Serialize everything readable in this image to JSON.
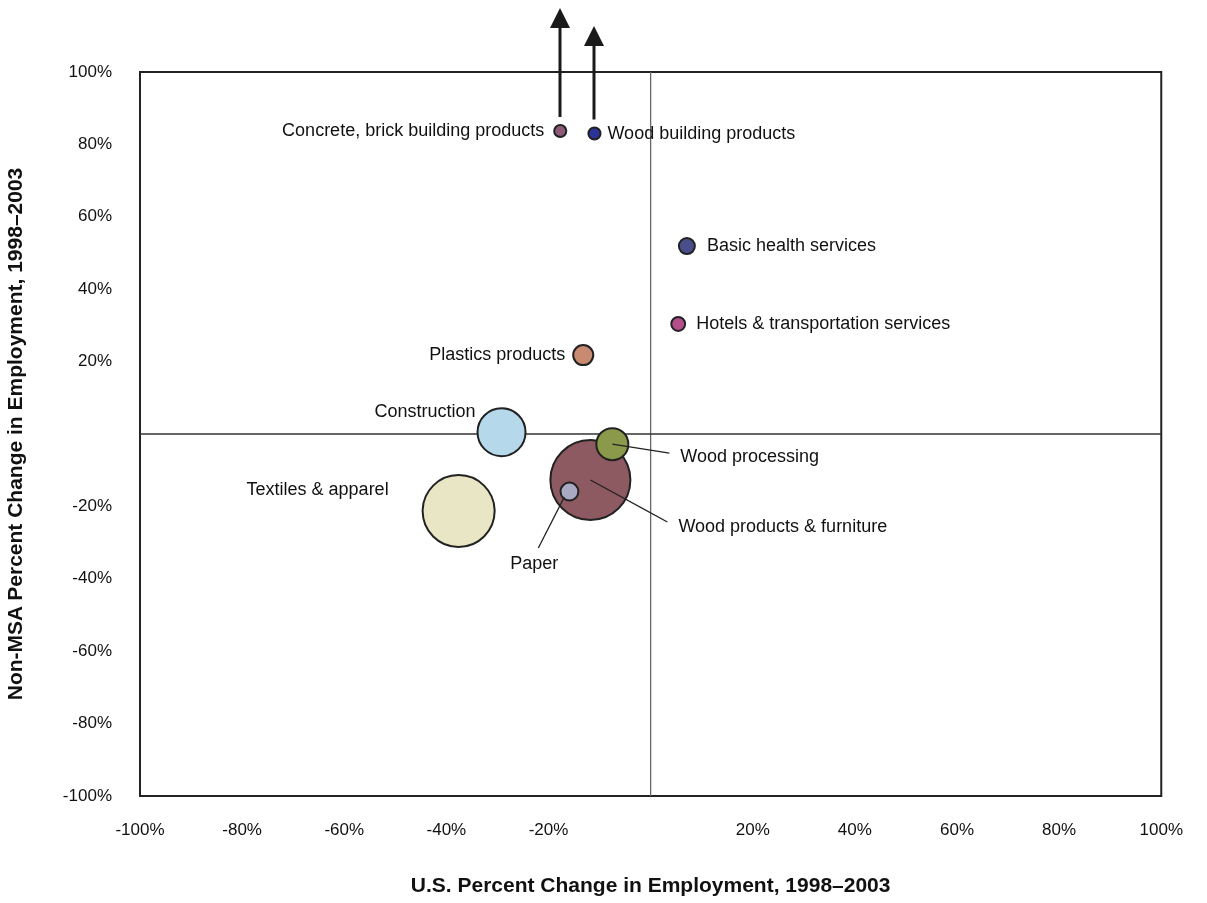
{
  "chart_data": {
    "type": "bubble",
    "xlabel": "U.S. Percent Change in Employment, 1998–2003",
    "ylabel": "Non-MSA Percent Change in Employment, 1998–2003",
    "x": [
      -17.7,
      -11,
      7.1,
      5.4,
      -13.2,
      -29.2,
      -11.8,
      -7.5,
      -15.9,
      -37.6
    ],
    "values": [
      83.7,
      83,
      51.9,
      30.4,
      21.8,
      0.5,
      -12.7,
      -2.8,
      -15.9,
      -21.3
    ],
    "sizes": [
      0.023,
      0.023,
      0.04,
      0.03,
      0.063,
      0.36,
      1,
      0.16,
      0.05,
      0.81
    ],
    "colors": [
      "#8e5a7a",
      "#2b3399",
      "#4a4f8c",
      "#b54f8c",
      "#c98a72",
      "#b5d8ea",
      "#8c5a60",
      "#8a9a4a",
      "#a9a9c2",
      "#e8e6c4"
    ],
    "xlim": [
      -100,
      100
    ],
    "ylim": [
      -100,
      100
    ],
    "xticks": [
      {
        "value": -100,
        "label": "-100%"
      },
      {
        "value": -80,
        "label": "-80%"
      },
      {
        "value": -60,
        "label": "-60%"
      },
      {
        "value": -40,
        "label": "-40%"
      },
      {
        "value": -20,
        "label": "-20%"
      },
      {
        "value": 20,
        "label": "20%"
      },
      {
        "value": 40,
        "label": "40%"
      },
      {
        "value": 60,
        "label": "60%"
      },
      {
        "value": 80,
        "label": "80%"
      },
      {
        "value": 100,
        "label": "100%"
      }
    ],
    "yticks": [
      {
        "value": -100,
        "label": "-100%"
      },
      {
        "value": -80,
        "label": "-80%"
      },
      {
        "value": -60,
        "label": "-60%"
      },
      {
        "value": -40,
        "label": "-40%"
      },
      {
        "value": -20,
        "label": "-20%"
      },
      {
        "value": 20,
        "label": "20%"
      },
      {
        "value": 40,
        "label": "40%"
      },
      {
        "value": 60,
        "label": "60%"
      },
      {
        "value": 80,
        "label": "80%"
      },
      {
        "value": 100,
        "label": "100%"
      }
    ],
    "ref_lines": [
      {
        "axis": "x",
        "value": 0,
        "color": "#666666"
      },
      {
        "axis": "y",
        "value": 0,
        "color": "#333333"
      }
    ],
    "annotations": [
      {
        "text": "Concrete, brick building products",
        "x": -17.7,
        "y": 83.7
      },
      {
        "text": "Wood building products",
        "x": -11,
        "y": 83
      },
      {
        "text": "Basic health services",
        "x": 7.1,
        "y": 51.9
      },
      {
        "text": "Hotels & transportation services",
        "x": 5.4,
        "y": 30.4
      },
      {
        "text": "Plastics products",
        "x": -13.2,
        "y": 21.8
      },
      {
        "text": "Construction",
        "x": -29.2,
        "y": 0.5
      },
      {
        "text": "Wood products & furniture",
        "x": -11.8,
        "y": -12.7
      },
      {
        "text": "Wood processing",
        "x": -7.5,
        "y": -2.8
      },
      {
        "text": "Paper",
        "x": -16.9,
        "y": -17.4
      },
      "Textiles & apparel"
    ],
    "grid": false,
    "legend": false
  }
}
